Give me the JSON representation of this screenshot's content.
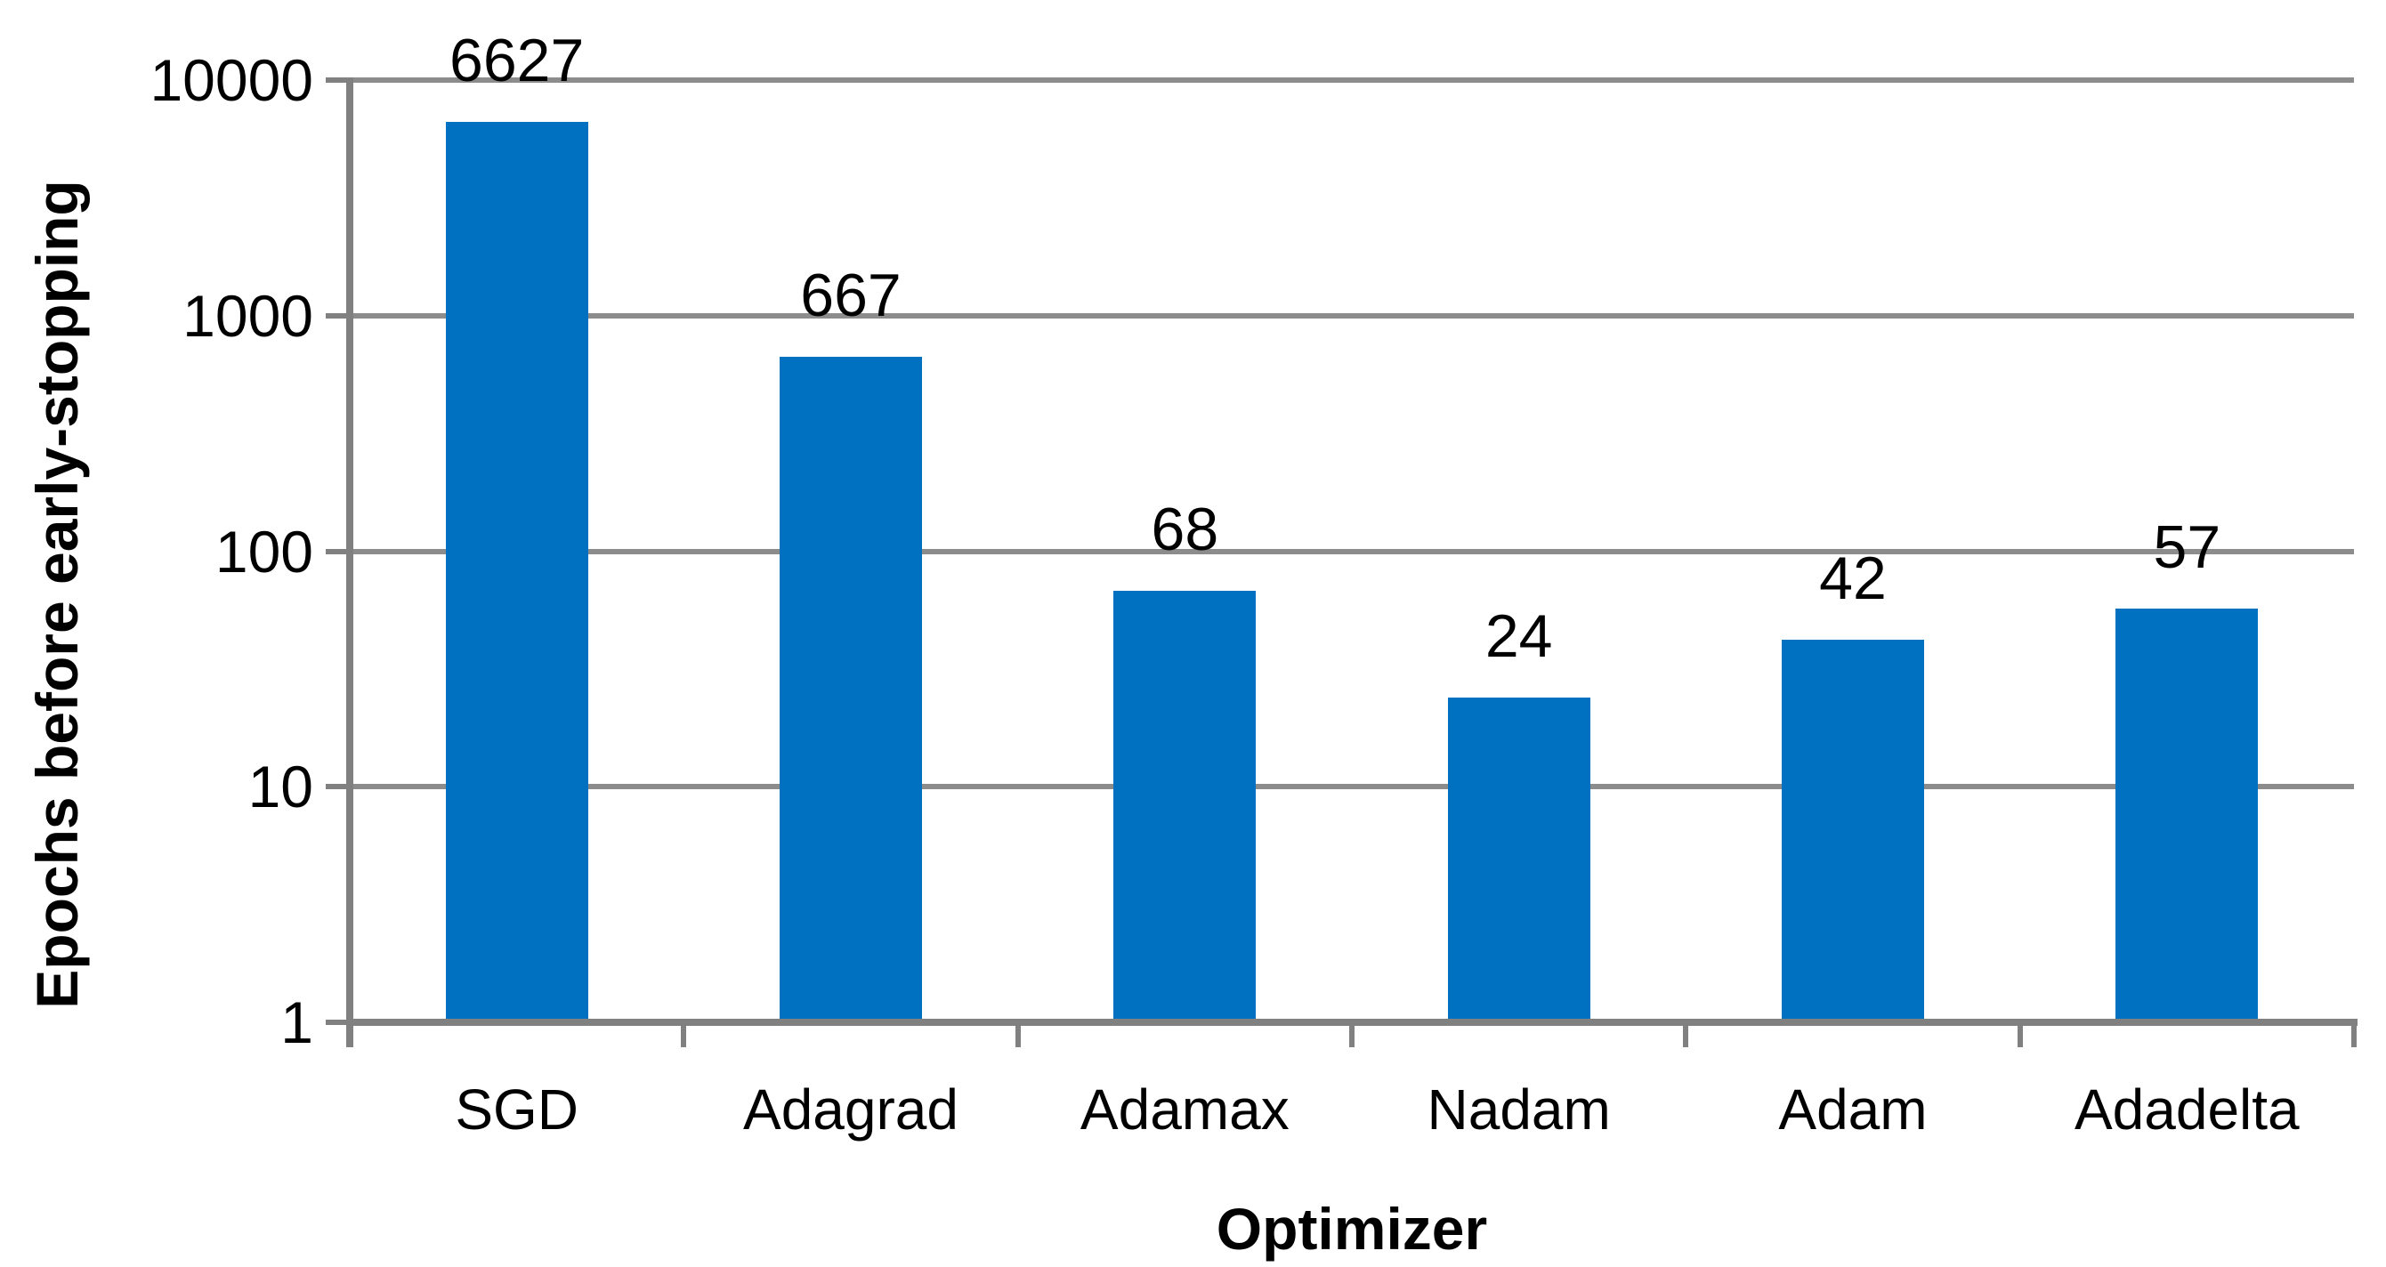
{
  "chart_data": {
    "type": "bar",
    "title": "",
    "categories": [
      "SGD",
      "Adagrad",
      "Adamax",
      "Nadam",
      "Adam",
      "Adadelta"
    ],
    "values": [
      6627,
      667,
      68,
      24,
      42,
      57
    ],
    "value_labels": [
      "6627",
      "667",
      "68",
      "24",
      "42",
      "57"
    ],
    "xlabel": "Optimizer",
    "ylabel": "Epochs before early-stopping",
    "y_scale": "log",
    "ylim": [
      1,
      10000
    ],
    "y_ticks": [
      1,
      10,
      100,
      1000,
      10000
    ],
    "y_tick_labels": [
      "1",
      "10",
      "100",
      "1000",
      "10000"
    ],
    "grid": "horizontal",
    "legend_position": "none",
    "colors": {
      "bar": "#0070C0",
      "gridline": "#8C8C8C",
      "axis": "#808080",
      "text": "#000000"
    }
  }
}
